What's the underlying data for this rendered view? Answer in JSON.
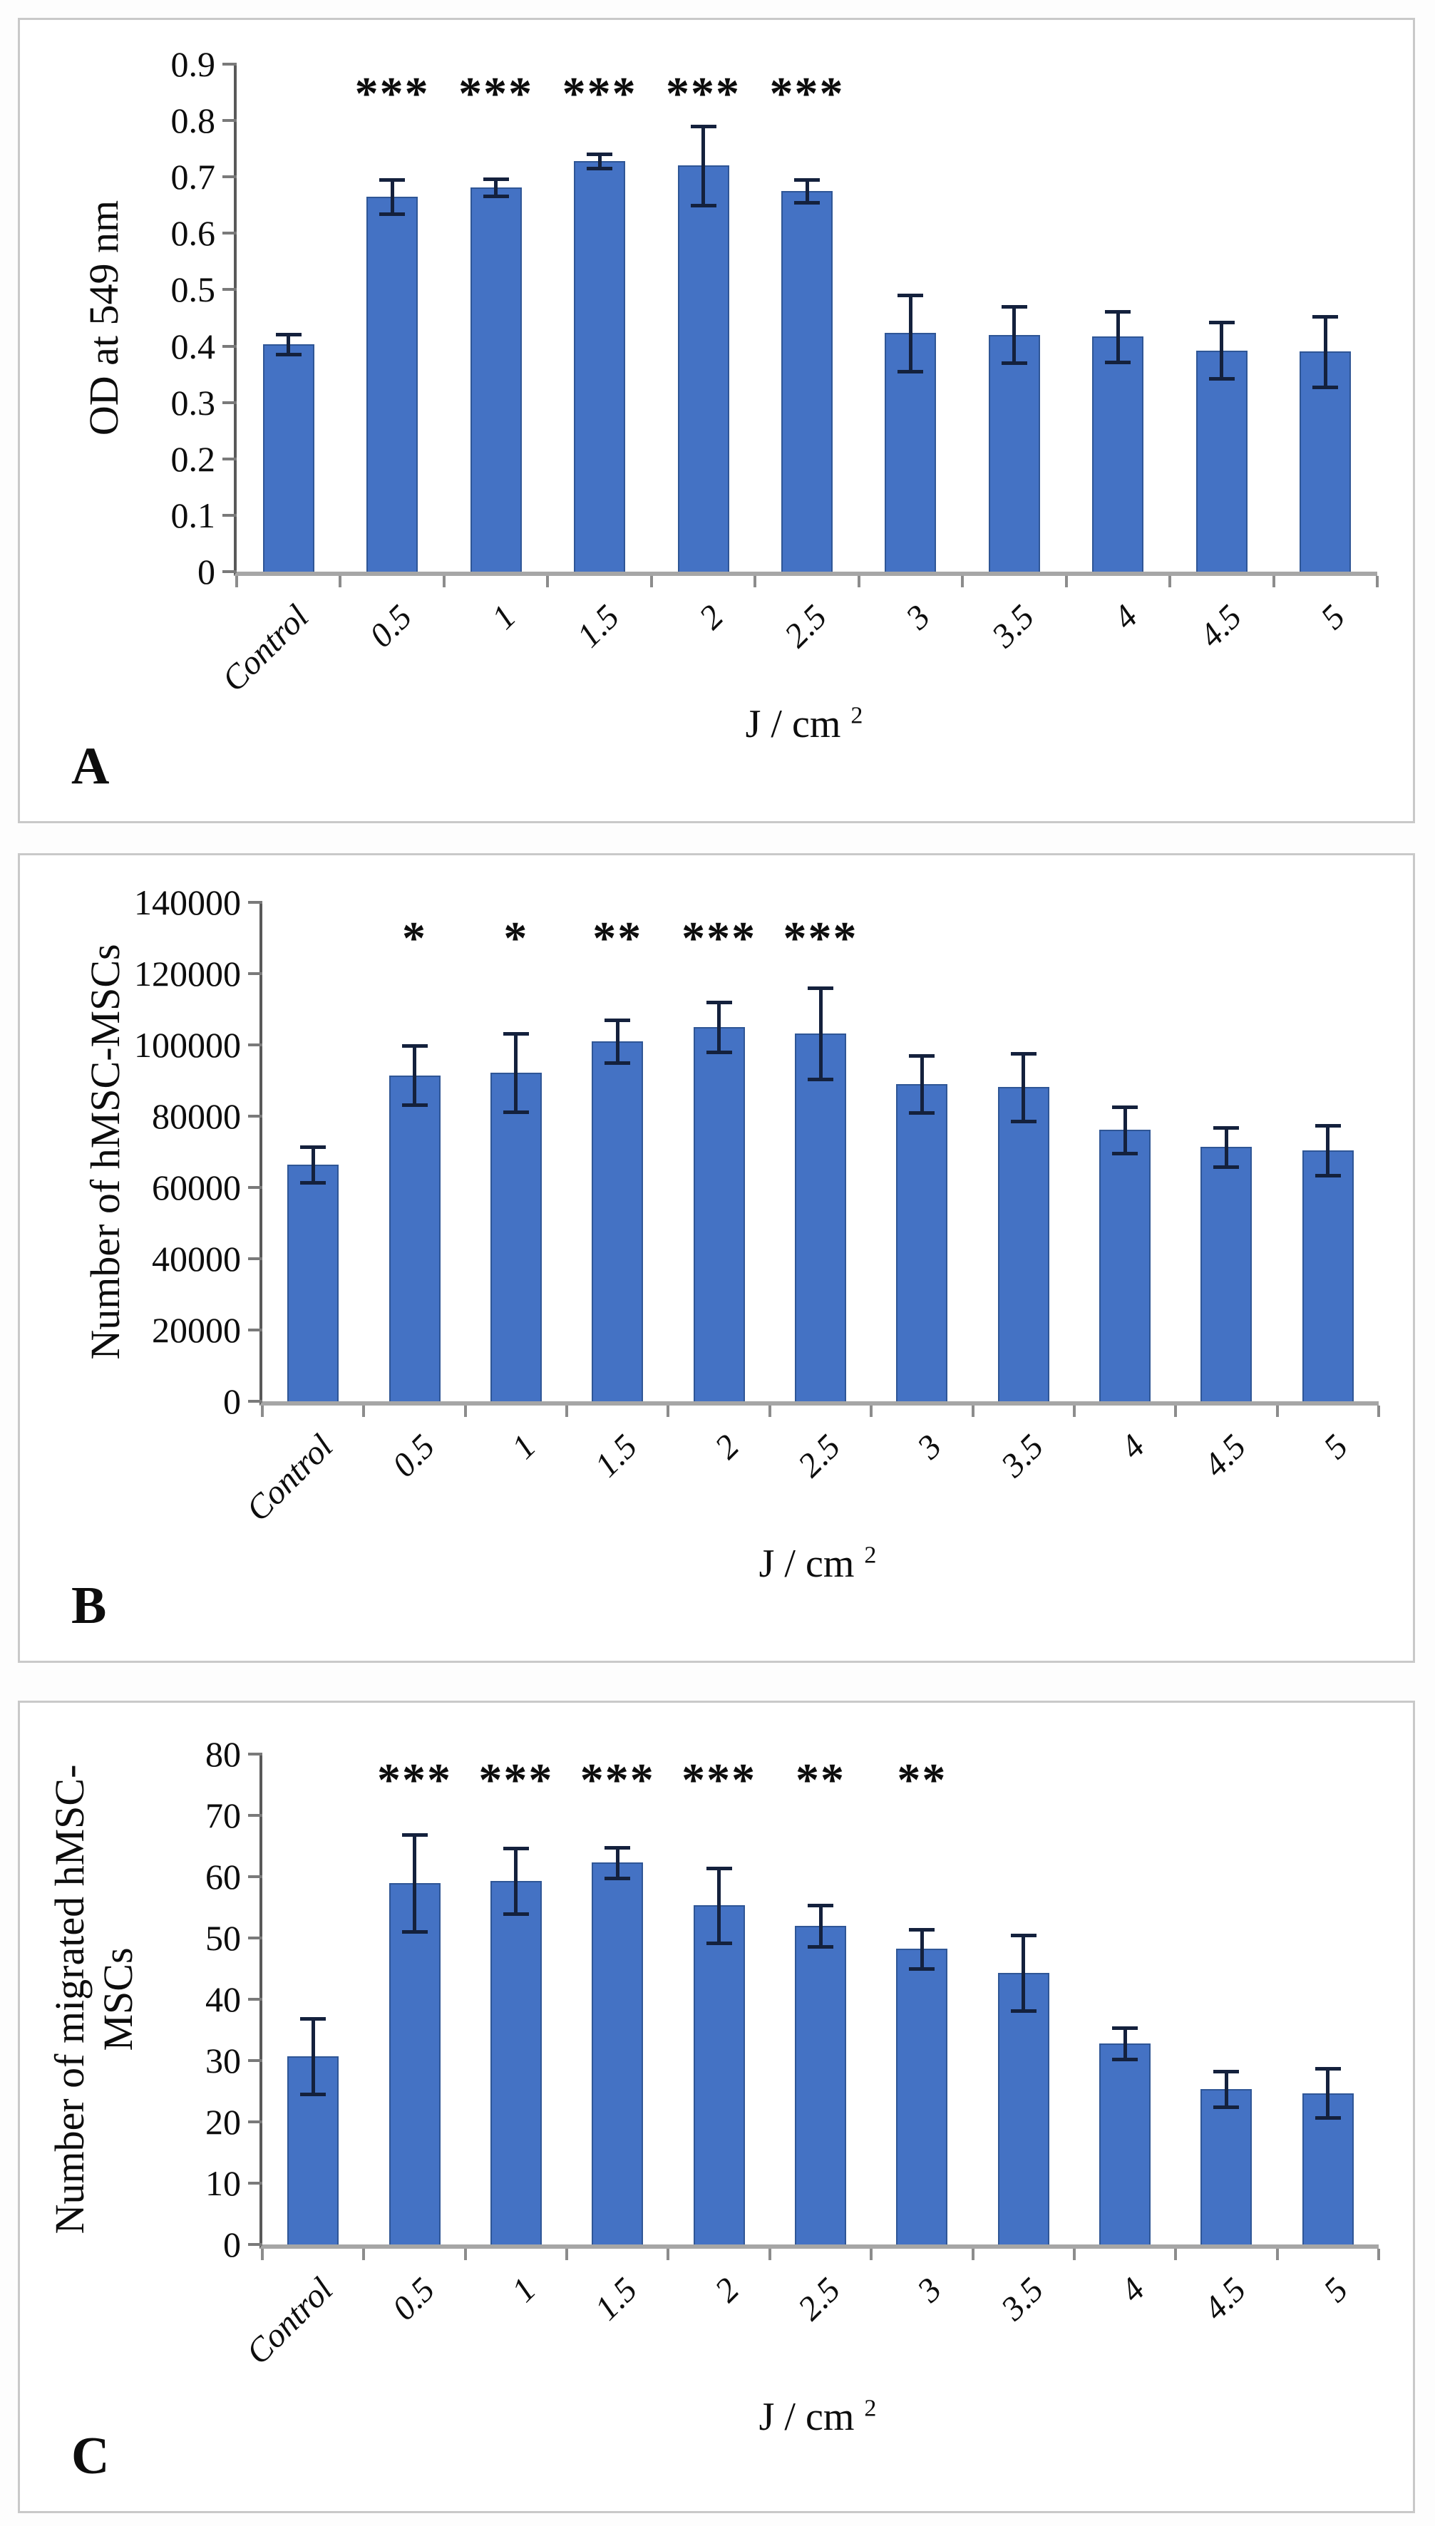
{
  "figure": {
    "description": "Three stacked bar-chart panels A, B, C with significance stars",
    "colors": {
      "bar_fill": "#4472C4",
      "bar_edge": "#2f5696",
      "error_bar": "#14213d",
      "x_axis": "#a6a6a6",
      "y_axis": "#595959",
      "panel_border": "#c9c9c9",
      "text": "#0d0d0d"
    }
  },
  "chart_data": [
    {
      "type": "bar",
      "panel_letter": "A",
      "ylabel_lines": [
        "OD at 549 nm"
      ],
      "xlabel_base": "J / cm",
      "xlabel_sup": "2",
      "categories": [
        "Control",
        "0.5",
        "1",
        "1.5",
        "2",
        "2.5",
        "3",
        "3.5",
        "4",
        "4.5",
        "5"
      ],
      "values": [
        0.403,
        0.665,
        0.681,
        0.728,
        0.72,
        0.675,
        0.423,
        0.42,
        0.417,
        0.392,
        0.39
      ],
      "errors": [
        0.018,
        0.03,
        0.015,
        0.013,
        0.07,
        0.02,
        0.068,
        0.05,
        0.045,
        0.05,
        0.062
      ],
      "significance": [
        "",
        "***",
        "***",
        "***",
        "***",
        "***",
        "",
        "",
        "",
        "",
        ""
      ],
      "sig_y": 0.845,
      "ylim": [
        0,
        0.9
      ],
      "yticks": [
        0,
        0.1,
        0.2,
        0.3,
        0.4,
        0.5,
        0.6,
        0.7,
        0.8,
        0.9
      ],
      "ytick_labels": [
        "0",
        "0.1",
        "0.2",
        "0.3",
        "0.4",
        "0.5",
        "0.6",
        "0.7",
        "0.8",
        "0.9"
      ],
      "grid": false,
      "legend": false
    },
    {
      "type": "bar",
      "panel_letter": "B",
      "ylabel_lines": [
        "Number of hMSC-MSCs"
      ],
      "xlabel_base": "J / cm",
      "xlabel_sup": "2",
      "categories": [
        "Control",
        "0.5",
        "1",
        "1.5",
        "2",
        "2.5",
        "3",
        "3.5",
        "4",
        "4.5",
        "5"
      ],
      "values": [
        66500,
        91500,
        92300,
        101000,
        105000,
        103200,
        89000,
        88200,
        76200,
        71400,
        70500
      ],
      "errors": [
        5000,
        8300,
        11000,
        6000,
        7000,
        12800,
        8000,
        9500,
        6500,
        5500,
        7000
      ],
      "significance": [
        "",
        "*",
        "*",
        "**",
        "***",
        "***",
        "",
        "",
        "",
        "",
        ""
      ],
      "sig_y": 129500,
      "ylim": [
        0,
        140000
      ],
      "yticks": [
        0,
        20000,
        40000,
        60000,
        80000,
        100000,
        120000,
        140000
      ],
      "ytick_labels": [
        "0",
        "20000",
        "40000",
        "60000",
        "80000",
        "100000",
        "120000",
        "140000"
      ],
      "grid": false,
      "legend": false
    },
    {
      "type": "bar",
      "panel_letter": "C",
      "ylabel_lines": [
        "Number of migrated hMSC-",
        "MSCs"
      ],
      "xlabel_base": "J / cm",
      "xlabel_sup": "2",
      "categories": [
        "Control",
        "0.5",
        "1",
        "1.5",
        "2",
        "2.5",
        "3",
        "3.5",
        "4",
        "4.5",
        "5"
      ],
      "values": [
        30.7,
        59,
        59.3,
        62.3,
        55.3,
        52,
        48.2,
        44.3,
        32.8,
        25.4,
        24.7
      ],
      "errors": [
        6.2,
        7.9,
        5.4,
        2.5,
        6.1,
        3.4,
        3.2,
        6.2,
        2.6,
        2.9,
        4
      ],
      "significance": [
        "",
        "***",
        "***",
        "***",
        "***",
        "**",
        "**",
        "",
        "",
        "",
        ""
      ],
      "sig_y": 75.5,
      "ylim": [
        0,
        80
      ],
      "yticks": [
        0,
        10,
        20,
        30,
        40,
        50,
        60,
        70,
        80
      ],
      "ytick_labels": [
        "0",
        "10",
        "20",
        "30",
        "40",
        "50",
        "60",
        "70",
        "80"
      ],
      "grid": false,
      "legend": false
    }
  ]
}
